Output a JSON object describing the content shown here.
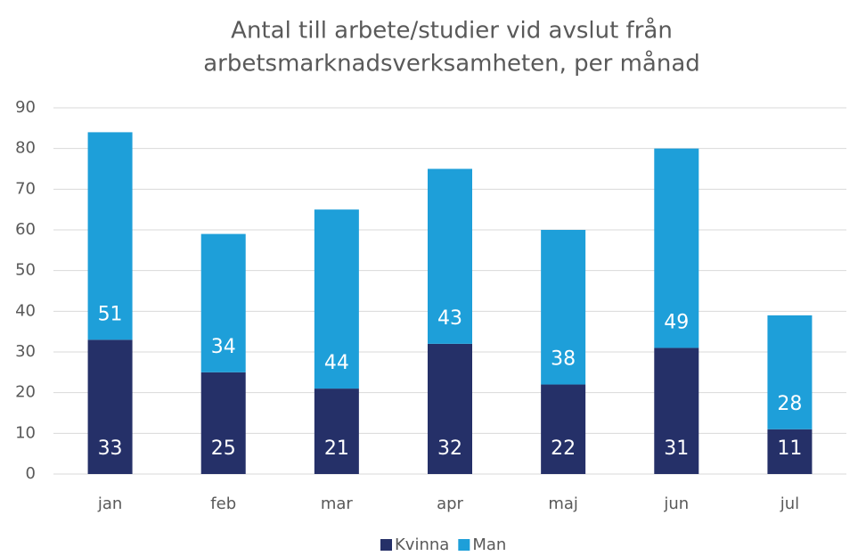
{
  "chart_data": {
    "type": "stacked_bar",
    "title": [
      "Antal till arbete/studier vid avslut från",
      "arbetsmarknadsverksamheten, per månad"
    ],
    "categories": [
      "jan",
      "feb",
      "mar",
      "apr",
      "maj",
      "jun",
      "jul"
    ],
    "series": [
      {
        "name": "Kvinna",
        "color": "#253068",
        "values": [
          33,
          25,
          21,
          32,
          22,
          31,
          11
        ]
      },
      {
        "name": "Man",
        "color": "#1e9fd9",
        "values": [
          51,
          34,
          44,
          43,
          38,
          49,
          28
        ]
      }
    ],
    "ylim": [
      0,
      90
    ],
    "yticks": [
      0,
      10,
      20,
      30,
      40,
      50,
      60,
      70,
      80,
      90
    ],
    "grid": true,
    "legend": "bottom"
  }
}
